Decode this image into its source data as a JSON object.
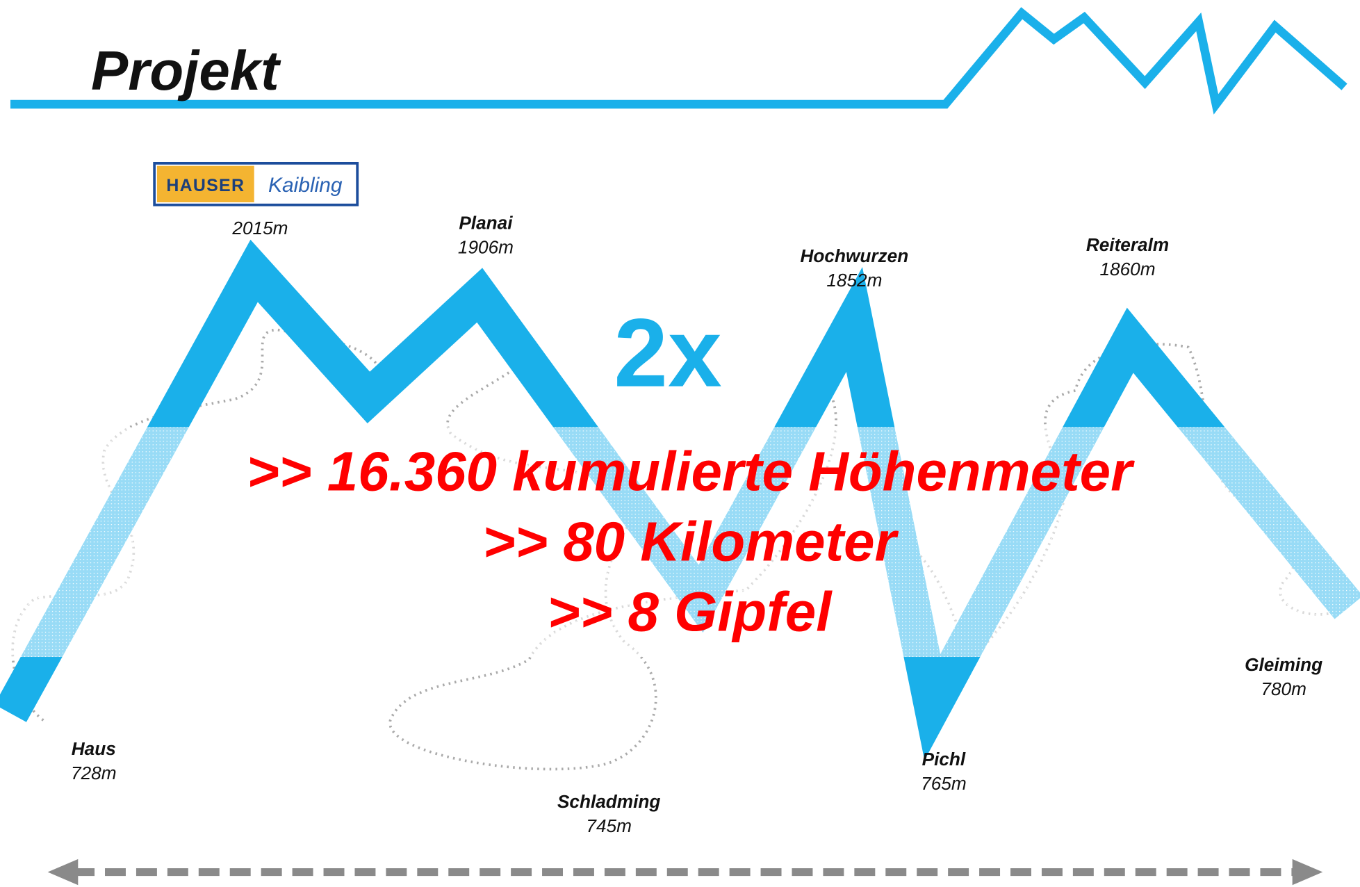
{
  "header": {
    "title": "Projekt"
  },
  "logo": {
    "left": "HAUSER",
    "right": "Kaibling"
  },
  "places": [
    {
      "name": "Haus",
      "elevation": "728m"
    },
    {
      "elevation": "2015m"
    },
    {
      "name": "Planai",
      "elevation": "1906m"
    },
    {
      "name": "Schladming",
      "elevation": "745m"
    },
    {
      "name": "Hochwurzen",
      "elevation": "1852m"
    },
    {
      "name": "Pichl",
      "elevation": "765m"
    },
    {
      "name": "Reiteralm",
      "elevation": "1860m"
    },
    {
      "name": "Gleiming",
      "elevation": "780m"
    }
  ],
  "multiplier": "2x",
  "highlights": [
    ">> 16.360 kumulierte Höhenmeter",
    ">> 80 Kilometer",
    ">> 8 Gipfel"
  ]
}
